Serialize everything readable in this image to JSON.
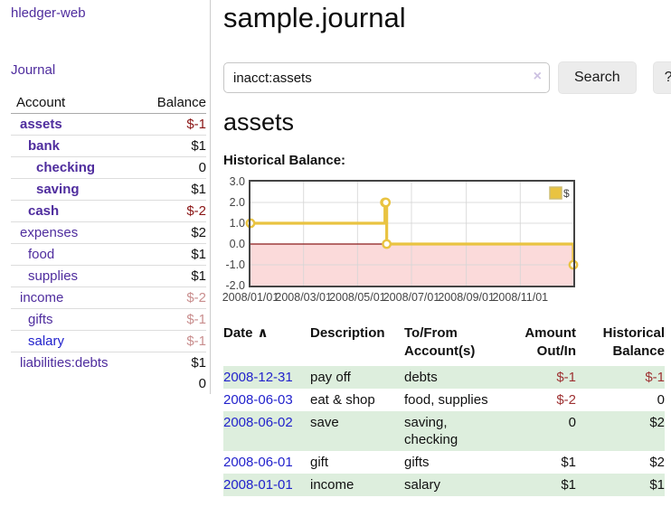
{
  "app": {
    "title": "hledger-web"
  },
  "sidebar": {
    "journal_link": "Journal",
    "accounts": {
      "headers": [
        "Account",
        "Balance"
      ],
      "rows": [
        {
          "account": "assets",
          "balance": "$-1",
          "level": 1,
          "in_account": true,
          "link": "purple",
          "negative": "strong"
        },
        {
          "account": "bank",
          "balance": "$1",
          "level": 2,
          "in_account": true,
          "link": "purple",
          "negative": "none"
        },
        {
          "account": "checking",
          "balance": "0",
          "level": 3,
          "in_account": true,
          "link": "purple",
          "negative": "none"
        },
        {
          "account": "saving",
          "balance": "$1",
          "level": 3,
          "in_account": true,
          "link": "purple",
          "negative": "none"
        },
        {
          "account": "cash",
          "balance": "$-2",
          "level": 2,
          "in_account": true,
          "link": "purple",
          "negative": "strong"
        },
        {
          "account": "expenses",
          "balance": "$2",
          "level": 1,
          "in_account": false,
          "link": "purple",
          "negative": "none"
        },
        {
          "account": "food",
          "balance": "$1",
          "level": 2,
          "in_account": false,
          "link": "purple",
          "negative": "none"
        },
        {
          "account": "supplies",
          "balance": "$1",
          "level": 2,
          "in_account": false,
          "link": "purple",
          "negative": "none"
        },
        {
          "account": "income",
          "balance": "$-2",
          "level": 1,
          "in_account": false,
          "link": "purple",
          "negative": "soft"
        },
        {
          "account": "gifts",
          "balance": "$-1",
          "level": 2,
          "in_account": false,
          "link": "purple",
          "negative": "soft"
        },
        {
          "account": "salary",
          "balance": "$-1",
          "level": 2,
          "in_account": false,
          "link": "blue",
          "negative": "soft"
        },
        {
          "account": "liabilities:debts",
          "balance": "$1",
          "level": 1,
          "in_account": false,
          "link": "purple",
          "negative": "none"
        }
      ],
      "total": "0"
    }
  },
  "main": {
    "title": "sample.journal",
    "search": {
      "value": "inacct:assets",
      "clear_icon": "×",
      "button_label": "Search",
      "help_label": "?"
    },
    "account_heading": "assets",
    "chart_label": "Historical Balance:",
    "register": {
      "headers": [
        "Date",
        "Description",
        "To/From Account(s)",
        "Amount Out/In",
        "Historical Balance"
      ],
      "sort_icon": "∧",
      "rows": [
        {
          "date": "2008-12-31",
          "description": "pay off",
          "accounts": "debts",
          "amount": "$-1",
          "amount_negative": true,
          "balance": "$-1",
          "balance_negative": true
        },
        {
          "date": "2008-06-03",
          "description": "eat & shop",
          "accounts": "food, supplies",
          "amount": "$-2",
          "amount_negative": true,
          "balance": "0",
          "balance_negative": false
        },
        {
          "date": "2008-06-02",
          "description": "save",
          "accounts": "saving, checking",
          "amount": "0",
          "amount_negative": false,
          "balance": "$2",
          "balance_negative": false
        },
        {
          "date": "2008-06-01",
          "description": "gift",
          "accounts": "gifts",
          "amount": "$1",
          "amount_negative": false,
          "balance": "$2",
          "balance_negative": false
        },
        {
          "date": "2008-01-01",
          "description": "income",
          "accounts": "salary",
          "amount": "$1",
          "amount_negative": false,
          "balance": "$1",
          "balance_negative": false
        }
      ]
    }
  },
  "chart_data": {
    "type": "line",
    "title": "Historical Balance:",
    "x_epoch": "2008-01-01",
    "x_domain_days": [
      0,
      365
    ],
    "ylim": [
      -2,
      3
    ],
    "y_ticks": [
      3.0,
      2.0,
      1.0,
      0.0,
      -1.0,
      -2.0
    ],
    "x_ticks": [
      "2008/01/01",
      "2008/03/01",
      "2008/05/01",
      "2008/07/01",
      "2008/09/01",
      "2008/11/01"
    ],
    "series": [
      {
        "name": "$",
        "color": "#e9c341",
        "step": true,
        "points": [
          [
            "2008-01-01",
            1
          ],
          [
            "2008-06-01",
            2
          ],
          [
            "2008-06-02",
            2
          ],
          [
            "2008-06-03",
            0
          ],
          [
            "2008-12-31",
            -1
          ]
        ]
      }
    ],
    "grid": true,
    "grid_color": "#d6d6d6",
    "border_color": "#444444",
    "negative_region_fill": "#fbdada",
    "zero_line_color": "#8b1a1a",
    "tick_label_color": "#444444",
    "legend": {
      "label": "$",
      "position": "top-right"
    }
  }
}
